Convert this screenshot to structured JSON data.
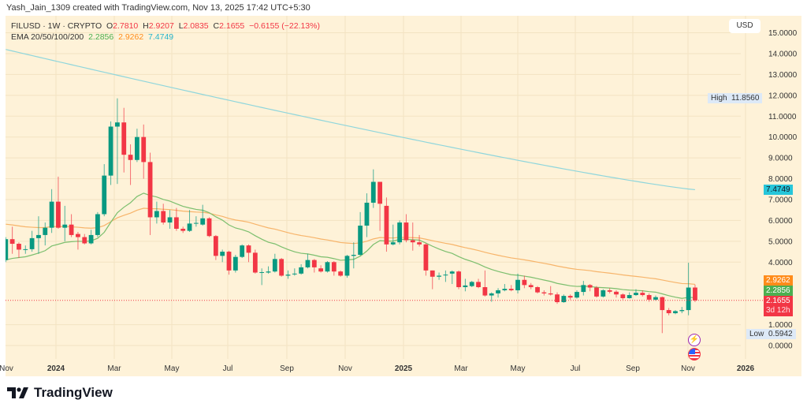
{
  "credit": "Yash_Jain_1309 created with TradingView.com, Nov 13, 2025 17:42 UTC+5:30",
  "legend": {
    "symbol": "FILUSD · 1W · CRYPTO",
    "o_label": "O",
    "o": "2.7810",
    "h_label": "H",
    "h": "2.9207",
    "l_label": "L",
    "l": "2.0835",
    "c_label": "C",
    "c": "2.1655",
    "change": "−0.6155 (−22.13%)",
    "ema_label": "EMA 20/50/100/200",
    "ema20": "2.2856",
    "ema50": "2.9262",
    "ema200": "7.4749"
  },
  "currency_button": "USD",
  "colors": {
    "up": "#089981",
    "down": "#f23645",
    "ema20": "#4caf50",
    "ema50": "#ff8c1a",
    "ema200": "#26c6da",
    "background": "#fef2d8"
  },
  "price_tags": {
    "ema200": "7.4749",
    "ema50": "2.9262",
    "ema20": "2.2856",
    "last": "2.1655",
    "countdown": "3d 12h",
    "high_label": "High",
    "high": "11.8560",
    "low_label": "Low",
    "low": "0.5942"
  },
  "icons": [
    "lightning-event-icon",
    "us-flag-event-icon"
  ],
  "logo_text": "TradingView",
  "chart_data": {
    "type": "candlestick",
    "interval": "1W",
    "ylim": [
      0,
      15
    ],
    "y_ticks": [
      "0.0000",
      "1.0000",
      "4.0000",
      "5.0000",
      "6.0000",
      "7.0000",
      "8.0000",
      "9.0000",
      "10.0000",
      "11.0000",
      "12.0000",
      "13.0000",
      "14.0000",
      "15.0000"
    ],
    "y_tick_values": [
      0,
      1,
      4,
      5,
      6,
      7,
      8,
      9,
      10,
      11,
      12,
      13,
      14,
      15
    ],
    "x_ticks": [
      "Nov",
      "2024",
      "Mar",
      "May",
      "Jul",
      "Sep",
      "Nov",
      "2025",
      "Mar",
      "May",
      "Jul",
      "Sep",
      "Nov",
      "2026"
    ],
    "grid": true,
    "ohlc": [
      [
        4.1,
        5.2,
        4.0,
        5.1
      ],
      [
        5.1,
        5.7,
        4.4,
        4.88
      ],
      [
        4.88,
        4.95,
        4.2,
        4.6
      ],
      [
        4.6,
        4.8,
        4.4,
        4.62
      ],
      [
        4.62,
        5.5,
        4.5,
        5.15
      ],
      [
        5.15,
        6.2,
        4.4,
        5.3
      ],
      [
        5.3,
        5.9,
        4.8,
        5.65
      ],
      [
        5.65,
        7.5,
        5.4,
        6.9
      ],
      [
        6.9,
        8.1,
        5.6,
        5.65
      ],
      [
        5.65,
        6.7,
        5.0,
        5.8
      ],
      [
        5.8,
        6.3,
        5.2,
        5.3
      ],
      [
        5.35,
        5.45,
        4.6,
        5.2
      ],
      [
        5.2,
        5.35,
        4.85,
        4.9
      ],
      [
        4.9,
        5.55,
        4.85,
        5.3
      ],
      [
        5.3,
        6.4,
        5.2,
        6.3
      ],
      [
        6.3,
        8.7,
        6.2,
        8.15
      ],
      [
        8.15,
        10.75,
        7.7,
        10.5
      ],
      [
        10.5,
        11.856,
        7.75,
        10.7
      ],
      [
        10.7,
        11.4,
        8.3,
        9.15
      ],
      [
        9.15,
        9.65,
        7.7,
        8.9
      ],
      [
        8.9,
        10.4,
        8.8,
        10.0
      ],
      [
        10.0,
        10.6,
        8.0,
        8.8
      ],
      [
        8.8,
        9.25,
        5.3,
        6.15
      ],
      [
        6.15,
        6.9,
        5.85,
        6.45
      ],
      [
        6.45,
        6.8,
        5.8,
        5.9
      ],
      [
        5.9,
        6.5,
        5.6,
        6.15
      ],
      [
        6.15,
        6.6,
        5.5,
        5.6
      ],
      [
        5.6,
        5.7,
        5.4,
        5.5
      ],
      [
        5.5,
        6.5,
        5.45,
        5.85
      ],
      [
        5.85,
        6.2,
        5.7,
        5.88
      ],
      [
        5.8,
        6.75,
        5.75,
        6.1
      ],
      [
        6.1,
        6.15,
        5.2,
        5.25
      ],
      [
        5.25,
        5.3,
        4.1,
        4.3
      ],
      [
        4.3,
        4.6,
        4.0,
        4.5
      ],
      [
        4.5,
        4.55,
        3.4,
        3.6
      ],
      [
        3.6,
        4.35,
        3.5,
        4.25
      ],
      [
        4.25,
        4.85,
        4.2,
        4.8
      ],
      [
        4.8,
        4.85,
        4.0,
        4.45
      ],
      [
        4.45,
        4.6,
        3.45,
        3.5
      ],
      [
        3.5,
        3.7,
        2.9,
        3.52
      ],
      [
        3.5,
        3.8,
        3.45,
        3.55
      ],
      [
        3.55,
        4.4,
        3.5,
        4.15
      ],
      [
        4.15,
        4.2,
        3.3,
        3.35
      ],
      [
        3.35,
        3.6,
        3.2,
        3.4
      ],
      [
        3.42,
        3.7,
        3.35,
        3.45
      ],
      [
        3.45,
        3.9,
        3.4,
        3.75
      ],
      [
        3.75,
        4.4,
        3.7,
        4.1
      ],
      [
        4.1,
        4.15,
        3.5,
        3.75
      ],
      [
        3.7,
        3.85,
        3.5,
        3.55
      ],
      [
        3.55,
        4.05,
        3.5,
        4.0
      ],
      [
        4.0,
        4.05,
        3.35,
        3.55
      ],
      [
        3.55,
        3.6,
        3.3,
        3.35
      ],
      [
        3.35,
        4.35,
        3.25,
        4.3
      ],
      [
        4.3,
        4.95,
        3.7,
        4.35
      ],
      [
        4.35,
        6.4,
        4.3,
        5.75
      ],
      [
        5.75,
        7.3,
        5.2,
        6.85
      ],
      [
        6.85,
        8.45,
        6.6,
        7.85
      ],
      [
        7.85,
        7.85,
        5.5,
        6.8
      ],
      [
        6.7,
        7.1,
        4.5,
        4.85
      ],
      [
        4.85,
        5.8,
        4.8,
        4.95
      ],
      [
        4.95,
        6.0,
        4.85,
        5.9
      ],
      [
        5.9,
        6.3,
        4.95,
        5.05
      ],
      [
        5.05,
        5.9,
        4.55,
        4.95
      ],
      [
        4.95,
        5.3,
        4.75,
        4.85
      ],
      [
        4.85,
        4.9,
        3.35,
        3.6
      ],
      [
        3.6,
        3.6,
        2.7,
        3.3
      ],
      [
        3.3,
        3.5,
        3.15,
        3.35
      ],
      [
        3.38,
        3.6,
        3.05,
        3.4
      ],
      [
        3.45,
        3.6,
        2.95,
        3.55
      ],
      [
        3.55,
        3.6,
        2.7,
        2.8
      ],
      [
        2.8,
        3.2,
        2.6,
        2.88
      ],
      [
        2.85,
        3.1,
        2.8,
        3.05
      ],
      [
        3.05,
        3.2,
        2.75,
        2.8
      ],
      [
        2.8,
        3.6,
        2.35,
        2.4
      ],
      [
        2.4,
        2.55,
        2.1,
        2.5
      ],
      [
        2.5,
        2.75,
        2.3,
        2.65
      ],
      [
        2.65,
        2.95,
        2.6,
        2.72
      ],
      [
        2.72,
        2.9,
        2.6,
        2.65
      ],
      [
        2.65,
        3.45,
        2.5,
        3.15
      ],
      [
        3.15,
        3.35,
        2.75,
        2.9
      ],
      [
        2.9,
        3.0,
        2.7,
        2.8
      ],
      [
        2.8,
        2.85,
        2.5,
        2.55
      ],
      [
        2.55,
        2.65,
        2.4,
        2.5
      ],
      [
        2.5,
        2.85,
        2.4,
        2.45
      ],
      [
        2.45,
        2.55,
        2.0,
        2.08
      ],
      [
        2.08,
        2.45,
        2.05,
        2.38
      ],
      [
        2.38,
        2.45,
        2.2,
        2.3
      ],
      [
        2.3,
        2.65,
        2.25,
        2.57
      ],
      [
        2.57,
        3.1,
        2.4,
        2.9
      ],
      [
        2.9,
        2.95,
        2.6,
        2.78
      ],
      [
        2.78,
        2.85,
        2.3,
        2.35
      ],
      [
        2.35,
        2.7,
        2.3,
        2.65
      ],
      [
        2.65,
        2.75,
        2.5,
        2.58
      ],
      [
        2.58,
        2.65,
        2.3,
        2.45
      ],
      [
        2.45,
        2.5,
        2.2,
        2.27
      ],
      [
        2.27,
        2.55,
        2.25,
        2.42
      ],
      [
        2.42,
        2.7,
        2.38,
        2.53
      ],
      [
        2.53,
        2.65,
        2.35,
        2.42
      ],
      [
        2.42,
        2.5,
        2.1,
        2.2
      ],
      [
        2.2,
        2.4,
        2.15,
        2.32
      ],
      [
        2.32,
        2.35,
        0.5942,
        1.7
      ],
      [
        1.7,
        1.8,
        1.45,
        1.55
      ],
      [
        1.55,
        1.7,
        1.5,
        1.65
      ],
      [
        1.65,
        1.85,
        1.55,
        1.7
      ],
      [
        1.7,
        3.97,
        1.45,
        2.78
      ],
      [
        2.781,
        2.9207,
        2.0835,
        2.1655
      ]
    ],
    "series": [
      {
        "name": "EMA 20"
      },
      {
        "name": "EMA 50"
      },
      {
        "name": "EMA 200"
      }
    ]
  }
}
